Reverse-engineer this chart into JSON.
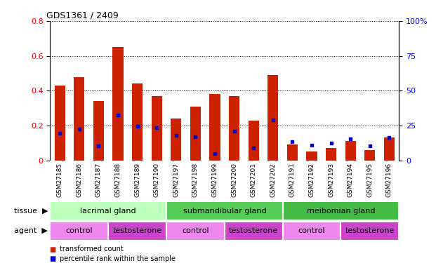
{
  "title": "GDS1361 / 2409",
  "samples": [
    "GSM27185",
    "GSM27186",
    "GSM27187",
    "GSM27188",
    "GSM27189",
    "GSM27190",
    "GSM27197",
    "GSM27198",
    "GSM27199",
    "GSM27200",
    "GSM27201",
    "GSM27202",
    "GSM27191",
    "GSM27192",
    "GSM27193",
    "GSM27194",
    "GSM27195",
    "GSM27196"
  ],
  "red_values": [
    0.43,
    0.48,
    0.34,
    0.65,
    0.44,
    0.37,
    0.24,
    0.31,
    0.38,
    0.37,
    0.23,
    0.49,
    0.09,
    0.05,
    0.07,
    0.11,
    0.06,
    0.13
  ],
  "blue_values": [
    0.195,
    0.225,
    0.105,
    0.325,
    0.245,
    0.235,
    0.18,
    0.17,
    0.05,
    0.21,
    0.09,
    0.29,
    0.135,
    0.11,
    0.125,
    0.155,
    0.105,
    0.165
  ],
  "ylim_left": [
    0,
    0.8
  ],
  "ylim_right": [
    0,
    100
  ],
  "yticks_left": [
    0,
    0.2,
    0.4,
    0.6,
    0.8
  ],
  "yticks_right": [
    0,
    25,
    50,
    75,
    100
  ],
  "bar_color": "#cc2200",
  "dot_color": "#0000cc",
  "tick_bg_color": "#cccccc",
  "tissue_colors": [
    "#bbffbb",
    "#55cc55",
    "#44bb44"
  ],
  "tissue_labels": [
    "lacrimal gland",
    "submandibular gland",
    "meibomian gland"
  ],
  "tissue_starts": [
    0,
    6,
    12
  ],
  "tissue_ends": [
    6,
    12,
    18
  ],
  "agent_colors_even": "#ee88ee",
  "agent_colors_odd": "#cc44cc",
  "agent_labels": [
    "control",
    "testosterone",
    "control",
    "testosterone",
    "control",
    "testosterone"
  ],
  "agent_starts": [
    0,
    3,
    6,
    9,
    12,
    15
  ],
  "agent_ends": [
    3,
    6,
    9,
    12,
    15,
    18
  ],
  "legend_label_red": "transformed count",
  "legend_label_blue": "percentile rank within the sample",
  "legend_color_red": "#cc2200",
  "legend_color_blue": "#0000cc",
  "label_tissue": "tissue",
  "label_agent": "agent"
}
